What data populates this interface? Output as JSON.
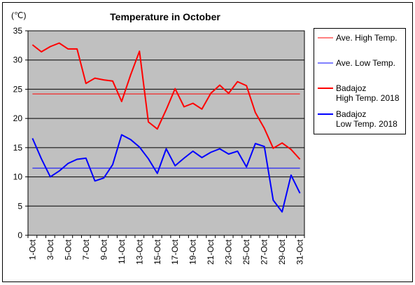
{
  "chart_data": {
    "type": "line",
    "title": "Temperature in October",
    "y_unit_label": "(℃)",
    "ylim": [
      0,
      35
    ],
    "y_ticks": [
      "0",
      "5",
      "10",
      "15",
      "20",
      "25",
      "30",
      "35"
    ],
    "grid": true,
    "legend_position": "right",
    "x_tick_labels": [
      "1-Oct",
      "3-Oct",
      "5-Oct",
      "7-Oct",
      "9-Oct",
      "11-Oct",
      "13-Oct",
      "15-Oct",
      "17-Oct",
      "19-Oct",
      "21-Oct",
      "23-Oct",
      "25-Oct",
      "27-Oct",
      "29-Oct",
      "31-Oct"
    ],
    "x": [
      "1-Oct",
      "2-Oct",
      "3-Oct",
      "4-Oct",
      "5-Oct",
      "6-Oct",
      "7-Oct",
      "8-Oct",
      "9-Oct",
      "10-Oct",
      "11-Oct",
      "12-Oct",
      "13-Oct",
      "14-Oct",
      "15-Oct",
      "16-Oct",
      "17-Oct",
      "18-Oct",
      "19-Oct",
      "20-Oct",
      "21-Oct",
      "22-Oct",
      "23-Oct",
      "24-Oct",
      "25-Oct",
      "26-Oct",
      "27-Oct",
      "28-Oct",
      "29-Oct",
      "30-Oct",
      "31-Oct"
    ],
    "series": [
      {
        "name": "Ave. High Temp.",
        "color": "#ff0000",
        "width": 1,
        "values": [
          24.2,
          24.2,
          24.2,
          24.2,
          24.2,
          24.2,
          24.2,
          24.2,
          24.2,
          24.2,
          24.2,
          24.2,
          24.2,
          24.2,
          24.2,
          24.2,
          24.2,
          24.2,
          24.2,
          24.2,
          24.2,
          24.2,
          24.2,
          24.2,
          24.2,
          24.2,
          24.2,
          24.2,
          24.2,
          24.2,
          24.2
        ]
      },
      {
        "name": "Ave. Low Temp.",
        "color": "#0000ff",
        "width": 1,
        "values": [
          11.5,
          11.5,
          11.5,
          11.5,
          11.5,
          11.5,
          11.5,
          11.5,
          11.5,
          11.5,
          11.5,
          11.5,
          11.5,
          11.5,
          11.5,
          11.5,
          11.5,
          11.5,
          11.5,
          11.5,
          11.5,
          11.5,
          11.5,
          11.5,
          11.5,
          11.5,
          11.5,
          11.5,
          11.5,
          11.5,
          11.5
        ]
      },
      {
        "name": "Badajoz High Temp. 2018",
        "legend_lines": [
          "Badajoz",
          "High Temp. 2018"
        ],
        "color": "#ff0000",
        "width": 2,
        "values": [
          32.6,
          31.4,
          32.3,
          32.9,
          31.9,
          31.9,
          26.0,
          26.9,
          26.6,
          26.4,
          22.9,
          27.4,
          31.5,
          19.4,
          18.2,
          21.5,
          25.1,
          22.0,
          22.6,
          21.6,
          24.3,
          25.7,
          24.3,
          26.3,
          25.6,
          21.0,
          18.3,
          14.9,
          15.8,
          14.7,
          13.0
        ]
      },
      {
        "name": "Badajoz Low Temp. 2018",
        "legend_lines": [
          "Badajoz",
          "Low Temp. 2018"
        ],
        "color": "#0000ff",
        "width": 2,
        "values": [
          16.6,
          13.1,
          10.0,
          11.0,
          12.3,
          13.0,
          13.2,
          9.3,
          9.8,
          12.1,
          17.2,
          16.4,
          15.1,
          13.1,
          10.6,
          14.8,
          11.9,
          13.2,
          14.4,
          13.3,
          14.2,
          14.8,
          13.9,
          14.4,
          11.7,
          15.7,
          15.2,
          6.0,
          4.0,
          10.3,
          7.2
        ]
      }
    ]
  }
}
